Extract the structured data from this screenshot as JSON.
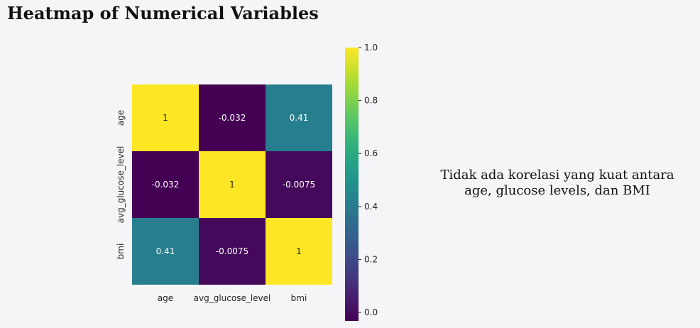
{
  "title": "Heatmap of Numerical Variables",
  "annotation": {
    "line1": "Tidak ada korelasi yang kuat antara",
    "line2": "age, glucose levels, dan BMI"
  },
  "chart_data": {
    "type": "heatmap",
    "colormap": "viridis",
    "x_categories": [
      "age",
      "avg_glucose_level",
      "bmi"
    ],
    "y_categories": [
      "age",
      "avg_glucose_level",
      "bmi"
    ],
    "values": [
      [
        1,
        -0.032,
        0.41
      ],
      [
        -0.032,
        1,
        -0.0075
      ],
      [
        0.41,
        -0.0075,
        1
      ]
    ],
    "cell_labels": [
      [
        "1",
        "-0.032",
        "0.41"
      ],
      [
        "-0.032",
        "1",
        "-0.0075"
      ],
      [
        "0.41",
        "-0.0075",
        "1"
      ]
    ],
    "colorbar": {
      "range": [
        -0.032,
        1.0
      ],
      "ticks": [
        0.0,
        0.2,
        0.4,
        0.6,
        0.8,
        1.0
      ],
      "tick_labels": [
        "0.0",
        "0.2",
        "0.4",
        "0.6",
        "0.8",
        "1.0"
      ]
    }
  }
}
